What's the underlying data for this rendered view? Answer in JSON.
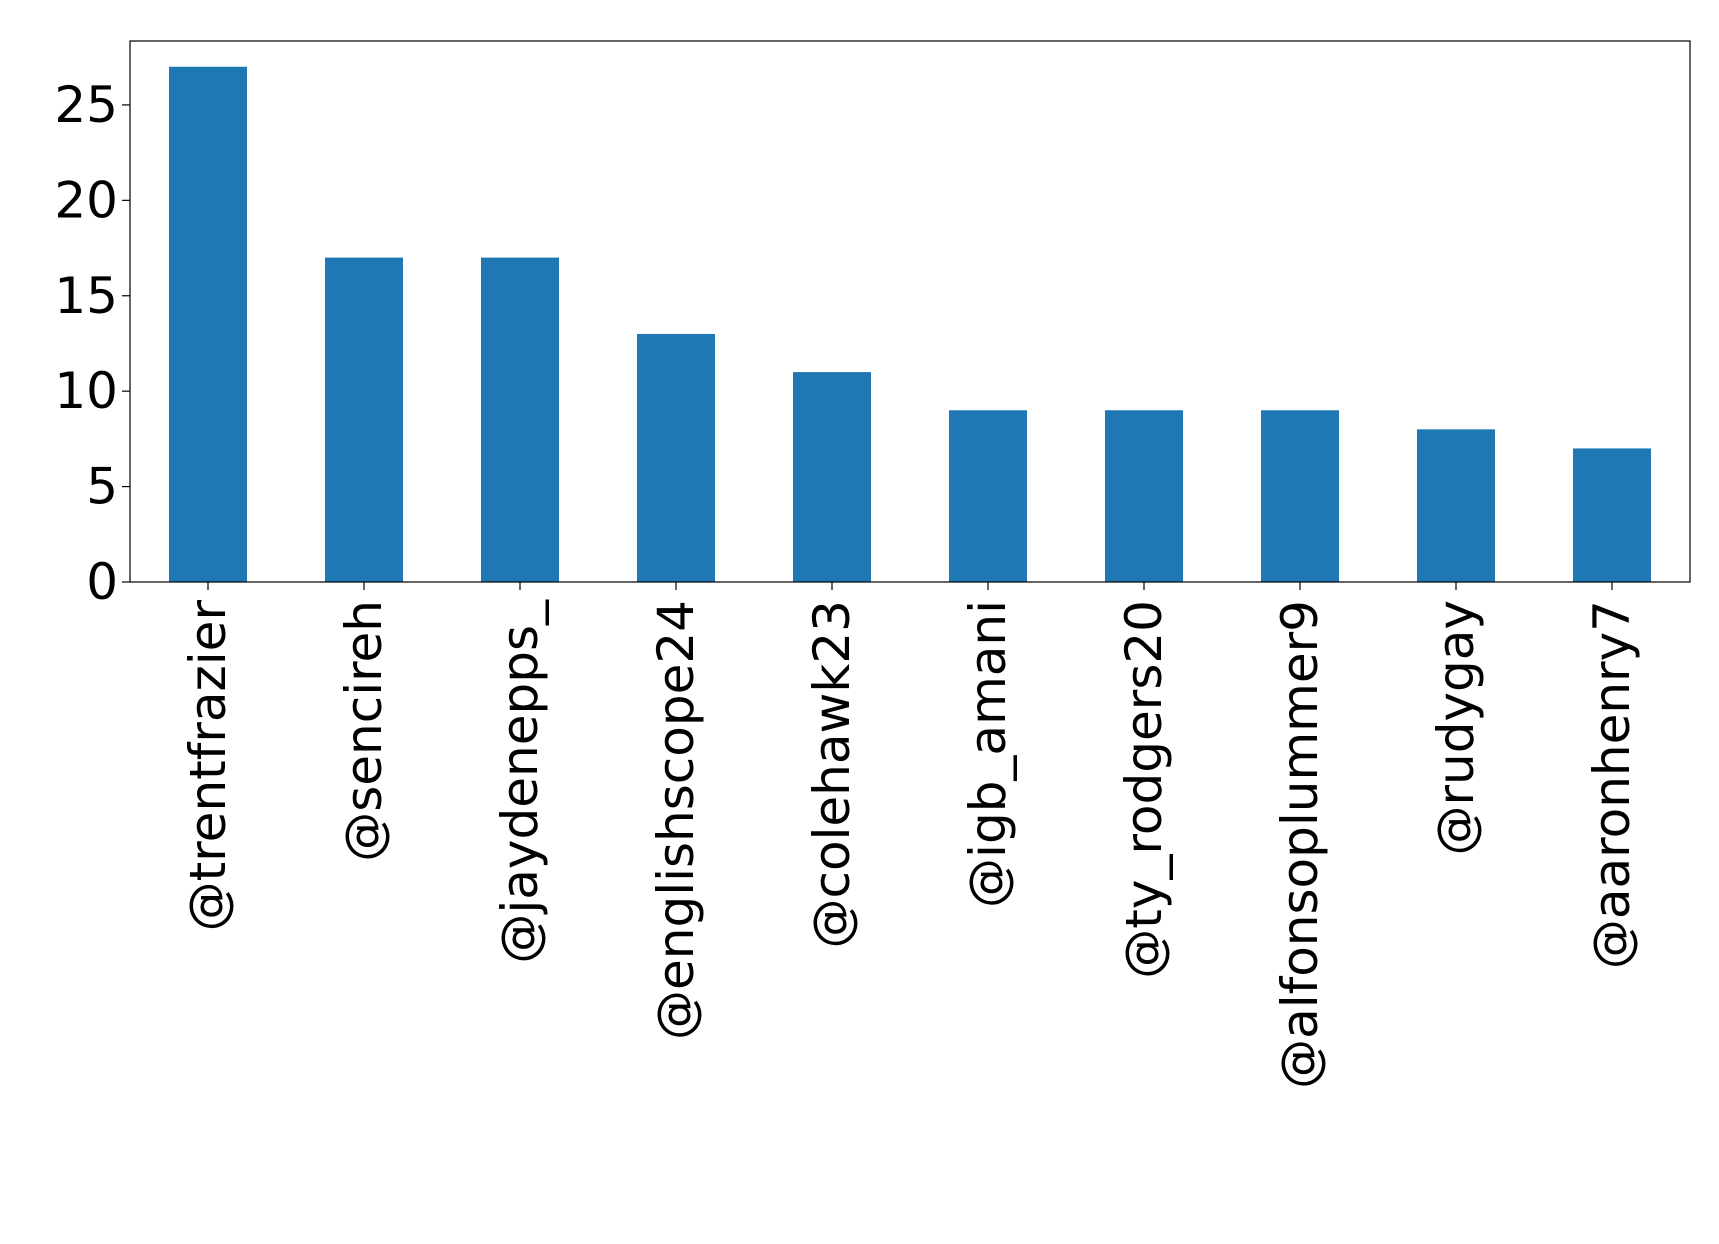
{
  "chart_data": {
    "type": "bar",
    "categories": [
      "@trentfrazier",
      "@sencireh",
      "@jaydenepps_",
      "@englishscope24",
      "@colehawk23",
      "@igb_amani",
      "@ty_rodgers20",
      "@alfonsoplummer9",
      "@rudygay",
      "@aaronhenry7"
    ],
    "values": [
      27,
      17,
      17,
      13,
      11,
      9,
      9,
      9,
      8,
      7
    ],
    "title": "",
    "xlabel": "",
    "ylabel": "",
    "ylim": [
      0,
      28.35
    ],
    "yticks": [
      0,
      5,
      10,
      15,
      20,
      25
    ],
    "grid": false,
    "legend": "none",
    "bar_color": "#1f77b4"
  }
}
